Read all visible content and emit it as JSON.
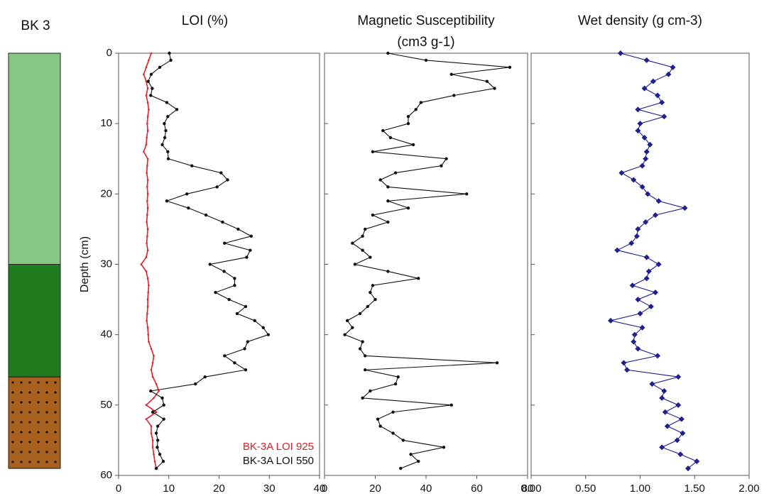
{
  "lithology_column": {
    "title": "BK 3",
    "units": [
      {
        "top": 0,
        "bottom": 30,
        "color": "#86c785"
      },
      {
        "top": 30,
        "bottom": 46,
        "color": "#207d1f"
      },
      {
        "top": 46,
        "bottom": 59,
        "color": "#a8601f",
        "pattern": "dots"
      }
    ]
  },
  "chart_data": [
    {
      "type": "line",
      "title": [
        "LOI (%)"
      ],
      "ylabel": "Depth (cm)",
      "xlim": [
        0,
        40
      ],
      "xticks": [
        0,
        10,
        20,
        30,
        40
      ],
      "ylim": [
        0,
        60
      ],
      "yticks": [
        0,
        10,
        20,
        30,
        40,
        50,
        60
      ],
      "y_inverted": true,
      "legend": "lower right",
      "depth": [
        0,
        1,
        2,
        3,
        4,
        5,
        6,
        7,
        8,
        9,
        10,
        11,
        12,
        13,
        14,
        15,
        16,
        17,
        18,
        19,
        20,
        21,
        22,
        23,
        24,
        25,
        26,
        27,
        28,
        29,
        30,
        31,
        32,
        33,
        34,
        35,
        36,
        37,
        38,
        39,
        40,
        41,
        42,
        43,
        44,
        45,
        46,
        47,
        48,
        49,
        50,
        51,
        52,
        53,
        54,
        55,
        56,
        57,
        58,
        59
      ],
      "series": [
        {
          "name": "BK-3A LOI 925",
          "color": "#e0202a",
          "marker": "dot",
          "values": [
            6.5,
            6,
            5.5,
            5,
            5.5,
            5.8,
            5.5,
            5.8,
            6,
            5.8,
            5.7,
            5.8,
            5.6,
            5.5,
            5,
            5.8,
            5.7,
            5.6,
            5.8,
            5.7,
            5.8,
            5.7,
            5.8,
            5.7,
            5.6,
            5.8,
            5.7,
            5.6,
            5.8,
            5.5,
            4.5,
            5.5,
            5.8,
            6,
            5.9,
            5.8,
            5.8,
            5.7,
            5.6,
            5.8,
            5.9,
            6,
            6.5,
            7,
            6.8,
            6.5,
            6.8,
            7.5,
            8,
            7,
            5.5,
            7.5,
            5.5,
            6.5,
            6.5,
            6.8,
            6.8,
            7,
            7.2,
            7.5
          ]
        },
        {
          "name": "BK-3A LOI 550",
          "color": "#111111",
          "marker": "circle",
          "values": [
            10.1,
            10.4,
            8.2,
            6.5,
            5.9,
            6.7,
            6.4,
            9.6,
            11.6,
            9.8,
            9.1,
            9.4,
            9.2,
            8.7,
            9.8,
            9.9,
            14.6,
            20.4,
            21.7,
            19.6,
            13.6,
            9.6,
            13.9,
            17.4,
            20.7,
            23.8,
            26.4,
            21.1,
            26.2,
            25.5,
            18.2,
            21,
            23.1,
            23.1,
            19.3,
            22,
            25.3,
            23.6,
            27.1,
            28.8,
            29.8,
            25.7,
            25.1,
            21.1,
            23.1,
            25.3,
            17.2,
            15.3,
            6.4,
            8.7,
            9,
            6.8,
            9,
            7.8,
            7.5,
            7.8,
            7.7,
            8.2,
            8.9,
            7.5
          ]
        }
      ]
    },
    {
      "type": "line",
      "title": [
        "Magnetic Susceptibility",
        "(cm3 g-1)"
      ],
      "xlim": [
        0,
        80
      ],
      "xticks": [
        0,
        20,
        40,
        60,
        80
      ],
      "ylim": [
        0,
        60
      ],
      "y_inverted": true,
      "depth": [
        0,
        1,
        2,
        3,
        4,
        5,
        6,
        7,
        8,
        9,
        10,
        11,
        12,
        13,
        14,
        15,
        16,
        17,
        18,
        19,
        20,
        21,
        22,
        23,
        24,
        25,
        26,
        27,
        28,
        29,
        30,
        31,
        32,
        33,
        34,
        35,
        36,
        37,
        38,
        39,
        40,
        41,
        42,
        43,
        44,
        45,
        46,
        47,
        48,
        49,
        50,
        51,
        52,
        53,
        54,
        55,
        56,
        57,
        58,
        59
      ],
      "series": [
        {
          "color": "#111111",
          "marker": "circle",
          "values": [
            25,
            40,
            73,
            50,
            64,
            67,
            51,
            38,
            36,
            33,
            33,
            23,
            26,
            35,
            19,
            48,
            46,
            28,
            22,
            25,
            56,
            25,
            33,
            19,
            25,
            16,
            15,
            11,
            15,
            18,
            12,
            25,
            37,
            19,
            18,
            20,
            17,
            14,
            9,
            11,
            8,
            15,
            14,
            16,
            68,
            16,
            29,
            28,
            18,
            15,
            50,
            27,
            21,
            22,
            27,
            31,
            47,
            34,
            37,
            30
          ]
        }
      ]
    },
    {
      "type": "line",
      "title": [
        "Wet density (g cm-3)"
      ],
      "xlim": [
        0,
        2
      ],
      "xticks": [
        {
          "value": 0,
          "label": "0.00"
        },
        {
          "value": 0.5,
          "label": "0.50"
        },
        {
          "value": 1,
          "label": "1.00"
        },
        {
          "value": 1.5,
          "label": "1.50"
        },
        {
          "value": 2,
          "label": "2.00"
        }
      ],
      "ylim": [
        0,
        60
      ],
      "y_inverted": true,
      "depth": [
        0,
        1,
        2,
        3,
        4,
        5,
        6,
        7,
        8,
        9,
        10,
        11,
        12,
        13,
        14,
        15,
        16,
        17,
        18,
        19,
        20,
        21,
        22,
        23,
        24,
        25,
        26,
        27,
        28,
        29,
        30,
        31,
        32,
        33,
        34,
        35,
        36,
        37,
        38,
        39,
        40,
        41,
        42,
        43,
        44,
        45,
        46,
        47,
        48,
        49,
        50,
        51,
        52,
        53,
        54,
        55,
        56,
        57,
        58,
        59
      ],
      "series": [
        {
          "color": "#1f1f8f",
          "marker": "diamond",
          "values": [
            0.82,
            1.06,
            1.3,
            1.26,
            1.12,
            1.04,
            1.16,
            1.2,
            0.98,
            1.22,
            1,
            0.98,
            1.04,
            1.09,
            1.06,
            1.05,
            1.02,
            0.83,
            0.94,
            1.02,
            1.07,
            1.17,
            1.41,
            1.14,
            1.05,
            0.98,
            0.97,
            0.92,
            0.79,
            1.06,
            1.17,
            1.08,
            1.06,
            0.93,
            1.14,
            0.98,
            1.1,
            1,
            0.73,
            1.02,
            0.95,
            0.94,
            0.98,
            1.16,
            0.85,
            0.88,
            1.35,
            1.11,
            1.22,
            1.2,
            1.35,
            1.23,
            1.38,
            1.25,
            1.39,
            1.34,
            1.2,
            1.37,
            1.52,
            1.44
          ]
        }
      ]
    }
  ]
}
